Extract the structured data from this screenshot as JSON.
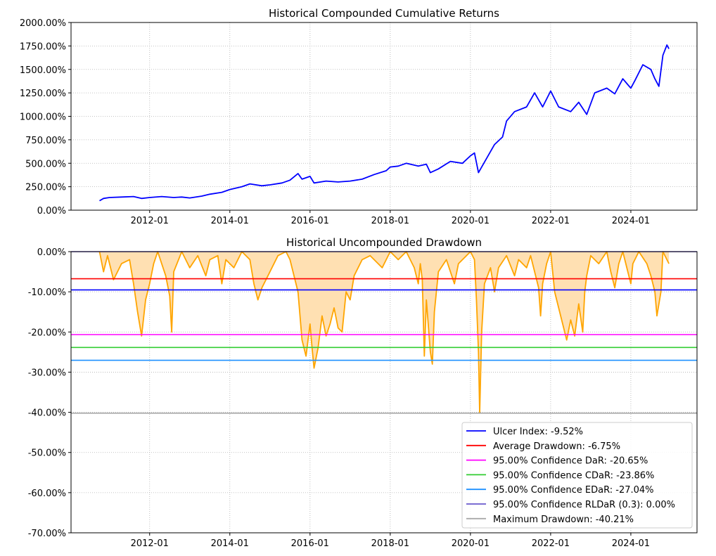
{
  "chart_data": [
    {
      "type": "line",
      "title": "Historical Compounded Cumulative Returns",
      "xlim": [
        2010.04,
        2025.65
      ],
      "ylim": [
        0,
        2000
      ],
      "yticks": [
        0,
        250,
        500,
        750,
        1000,
        1250,
        1500,
        1750,
        2000
      ],
      "ytick_labels": [
        "0.00%",
        "250.00%",
        "500.00%",
        "750.00%",
        "1000.00%",
        "1250.00%",
        "1500.00%",
        "1750.00%",
        "2000.00%"
      ],
      "xticks": [
        2012,
        2014,
        2016,
        2018,
        2020,
        2022,
        2024
      ],
      "xtick_labels": [
        "2012-01",
        "2014-01",
        "2016-01",
        "2018-01",
        "2020-01",
        "2022-01",
        "2024-01"
      ],
      "grid": true,
      "color": "#0000ff",
      "series": [
        [
          2010.75,
          100
        ],
        [
          2010.85,
          125
        ],
        [
          2011.0,
          135
        ],
        [
          2011.3,
          140
        ],
        [
          2011.6,
          145
        ],
        [
          2011.8,
          125
        ],
        [
          2012.0,
          135
        ],
        [
          2012.3,
          145
        ],
        [
          2012.6,
          135
        ],
        [
          2012.8,
          140
        ],
        [
          2013.0,
          130
        ],
        [
          2013.3,
          150
        ],
        [
          2013.5,
          170
        ],
        [
          2013.8,
          190
        ],
        [
          2014.0,
          220
        ],
        [
          2014.3,
          250
        ],
        [
          2014.5,
          280
        ],
        [
          2014.8,
          260
        ],
        [
          2015.0,
          270
        ],
        [
          2015.3,
          290
        ],
        [
          2015.5,
          320
        ],
        [
          2015.7,
          390
        ],
        [
          2015.8,
          330
        ],
        [
          2016.0,
          360
        ],
        [
          2016.1,
          290
        ],
        [
          2016.4,
          310
        ],
        [
          2016.7,
          300
        ],
        [
          2017.0,
          310
        ],
        [
          2017.3,
          330
        ],
        [
          2017.6,
          380
        ],
        [
          2017.9,
          420
        ],
        [
          2018.0,
          460
        ],
        [
          2018.2,
          470
        ],
        [
          2018.4,
          500
        ],
        [
          2018.7,
          470
        ],
        [
          2018.9,
          490
        ],
        [
          2019.0,
          400
        ],
        [
          2019.2,
          440
        ],
        [
          2019.5,
          520
        ],
        [
          2019.8,
          500
        ],
        [
          2020.0,
          580
        ],
        [
          2020.1,
          610
        ],
        [
          2020.2,
          400
        ],
        [
          2020.4,
          550
        ],
        [
          2020.6,
          700
        ],
        [
          2020.8,
          780
        ],
        [
          2020.9,
          950
        ],
        [
          2021.1,
          1050
        ],
        [
          2021.4,
          1100
        ],
        [
          2021.6,
          1250
        ],
        [
          2021.8,
          1100
        ],
        [
          2022.0,
          1270
        ],
        [
          2022.2,
          1100
        ],
        [
          2022.5,
          1050
        ],
        [
          2022.7,
          1150
        ],
        [
          2022.9,
          1020
        ],
        [
          2023.1,
          1250
        ],
        [
          2023.4,
          1300
        ],
        [
          2023.6,
          1240
        ],
        [
          2023.8,
          1400
        ],
        [
          2024.0,
          1300
        ],
        [
          2024.1,
          1380
        ],
        [
          2024.3,
          1550
        ],
        [
          2024.5,
          1500
        ],
        [
          2024.6,
          1400
        ],
        [
          2024.7,
          1320
        ],
        [
          2024.8,
          1650
        ],
        [
          2024.9,
          1760
        ],
        [
          2024.95,
          1720
        ]
      ]
    },
    {
      "type": "area",
      "title": "Historical Uncompounded Drawdown",
      "xlim": [
        2010.04,
        2025.65
      ],
      "ylim": [
        -70,
        0
      ],
      "yticks": [
        0,
        -10,
        -20,
        -30,
        -40,
        -50,
        -60,
        -70
      ],
      "ytick_labels": [
        "0.00%",
        "-10.00%",
        "-20.00%",
        "-30.00%",
        "-40.00%",
        "-50.00%",
        "-60.00%",
        "-70.00%"
      ],
      "xticks": [
        2012,
        2014,
        2016,
        2018,
        2020,
        2022,
        2024
      ],
      "xtick_labels": [
        "2012-01",
        "2014-01",
        "2016-01",
        "2018-01",
        "2020-01",
        "2022-01",
        "2024-01"
      ],
      "grid": true,
      "color": "#ffa500",
      "fill": "#ffe0b2",
      "series": [
        [
          2010.75,
          0
        ],
        [
          2010.85,
          -5
        ],
        [
          2010.95,
          -1
        ],
        [
          2011.1,
          -7
        ],
        [
          2011.3,
          -3
        ],
        [
          2011.5,
          -2
        ],
        [
          2011.6,
          -8
        ],
        [
          2011.7,
          -15
        ],
        [
          2011.8,
          -21
        ],
        [
          2011.9,
          -12
        ],
        [
          2012.0,
          -8
        ],
        [
          2012.1,
          -3
        ],
        [
          2012.2,
          0
        ],
        [
          2012.4,
          -6
        ],
        [
          2012.5,
          -11
        ],
        [
          2012.55,
          -20
        ],
        [
          2012.6,
          -5
        ],
        [
          2012.8,
          0
        ],
        [
          2013.0,
          -4
        ],
        [
          2013.2,
          -1
        ],
        [
          2013.4,
          -6
        ],
        [
          2013.5,
          -2
        ],
        [
          2013.7,
          -1
        ],
        [
          2013.8,
          -8
        ],
        [
          2013.9,
          -2
        ],
        [
          2014.1,
          -4
        ],
        [
          2014.3,
          0
        ],
        [
          2014.5,
          -2
        ],
        [
          2014.6,
          -8
        ],
        [
          2014.7,
          -12
        ],
        [
          2014.8,
          -9
        ],
        [
          2015.0,
          -5
        ],
        [
          2015.2,
          -1
        ],
        [
          2015.4,
          0
        ],
        [
          2015.5,
          -2
        ],
        [
          2015.7,
          -10
        ],
        [
          2015.8,
          -22
        ],
        [
          2015.9,
          -26
        ],
        [
          2016.0,
          -18
        ],
        [
          2016.05,
          -24
        ],
        [
          2016.1,
          -29
        ],
        [
          2016.2,
          -24
        ],
        [
          2016.3,
          -16
        ],
        [
          2016.4,
          -21
        ],
        [
          2016.5,
          -18
        ],
        [
          2016.6,
          -14
        ],
        [
          2016.7,
          -19
        ],
        [
          2016.8,
          -20
        ],
        [
          2016.9,
          -10
        ],
        [
          2017.0,
          -12
        ],
        [
          2017.1,
          -6
        ],
        [
          2017.3,
          -2
        ],
        [
          2017.5,
          -1
        ],
        [
          2017.8,
          -4
        ],
        [
          2018.0,
          0
        ],
        [
          2018.2,
          -2
        ],
        [
          2018.4,
          0
        ],
        [
          2018.6,
          -4
        ],
        [
          2018.7,
          -8
        ],
        [
          2018.75,
          -3
        ],
        [
          2018.8,
          -7
        ],
        [
          2018.85,
          -26
        ],
        [
          2018.9,
          -12
        ],
        [
          2019.0,
          -25
        ],
        [
          2019.05,
          -28
        ],
        [
          2019.1,
          -15
        ],
        [
          2019.2,
          -5
        ],
        [
          2019.4,
          -2
        ],
        [
          2019.6,
          -8
        ],
        [
          2019.7,
          -3
        ],
        [
          2019.9,
          -1
        ],
        [
          2020.0,
          0
        ],
        [
          2020.1,
          -2
        ],
        [
          2020.15,
          -12
        ],
        [
          2020.2,
          -25
        ],
        [
          2020.23,
          -40.21
        ],
        [
          2020.28,
          -20
        ],
        [
          2020.35,
          -8
        ],
        [
          2020.5,
          -4
        ],
        [
          2020.6,
          -10
        ],
        [
          2020.7,
          -4
        ],
        [
          2020.9,
          -1
        ],
        [
          2021.1,
          -6
        ],
        [
          2021.2,
          -2
        ],
        [
          2021.4,
          -4
        ],
        [
          2021.5,
          -1
        ],
        [
          2021.7,
          -9
        ],
        [
          2021.75,
          -16
        ],
        [
          2021.8,
          -8
        ],
        [
          2021.9,
          -3
        ],
        [
          2022.0,
          0
        ],
        [
          2022.1,
          -10
        ],
        [
          2022.2,
          -14
        ],
        [
          2022.3,
          -18
        ],
        [
          2022.4,
          -22
        ],
        [
          2022.5,
          -17
        ],
        [
          2022.6,
          -21
        ],
        [
          2022.7,
          -13
        ],
        [
          2022.8,
          -20
        ],
        [
          2022.85,
          -10
        ],
        [
          2022.9,
          -6
        ],
        [
          2023.0,
          -1
        ],
        [
          2023.2,
          -3
        ],
        [
          2023.4,
          0
        ],
        [
          2023.5,
          -5
        ],
        [
          2023.6,
          -9
        ],
        [
          2023.7,
          -3
        ],
        [
          2023.8,
          0
        ],
        [
          2024.0,
          -8
        ],
        [
          2024.05,
          -3
        ],
        [
          2024.2,
          0
        ],
        [
          2024.4,
          -3
        ],
        [
          2024.5,
          -6
        ],
        [
          2024.6,
          -10
        ],
        [
          2024.65,
          -16
        ],
        [
          2024.75,
          -10
        ],
        [
          2024.8,
          0
        ],
        [
          2024.9,
          -2
        ],
        [
          2024.95,
          -3
        ]
      ],
      "hlines": [
        {
          "label": "Ulcer Index: -9.52%",
          "value": -9.52,
          "color": "#0000ff"
        },
        {
          "label": "Average Drawdown: -6.75%",
          "value": -6.75,
          "color": "#ff0000"
        },
        {
          "label": "95.00% Confidence DaR: -20.65%",
          "value": -20.65,
          "color": "#ff00ff"
        },
        {
          "label": "95.00% Confidence CDaR: -23.86%",
          "value": -23.86,
          "color": "#32cd32"
        },
        {
          "label": "95.00% Confidence EDaR: -27.04%",
          "value": -27.04,
          "color": "#1e90ff"
        },
        {
          "label": "95.00% Confidence RLDaR (0.3): 0.00%",
          "value": 0.0,
          "color": "#6a5acd"
        },
        {
          "label": "Maximum Drawdown: -40.21%",
          "value": -40.21,
          "color": "#a9a9a9"
        }
      ],
      "legend": "lower-right"
    }
  ]
}
